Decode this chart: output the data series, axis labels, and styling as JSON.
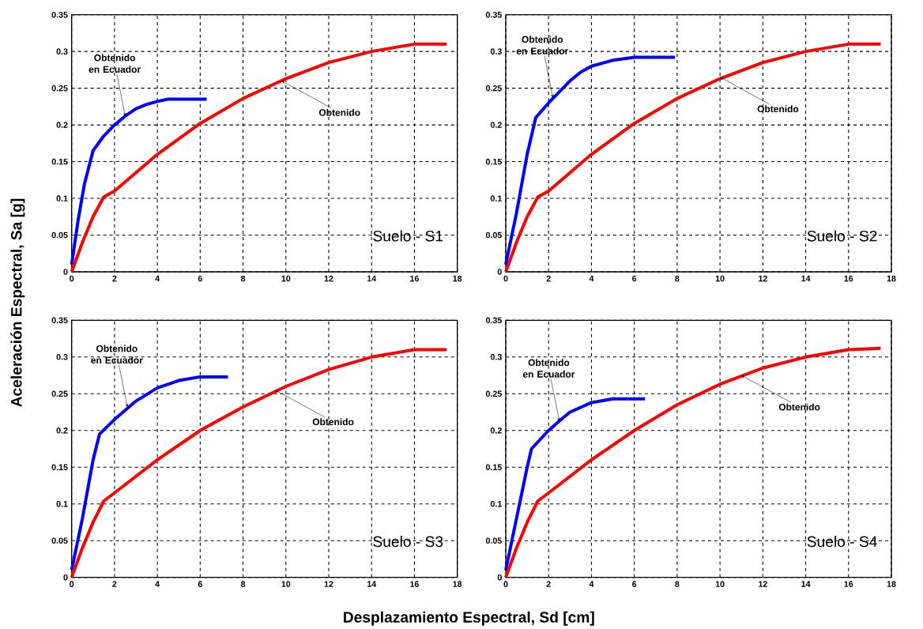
{
  "chart_data": [
    {
      "type": "line",
      "ylabel": "Aceleración Espectral, Sa [g]",
      "xlim": [
        0,
        18
      ],
      "ylim": [
        0,
        0.35
      ],
      "xticks": [
        0,
        2,
        4,
        6,
        8,
        10,
        12,
        14,
        16,
        18
      ],
      "yticks": [
        0,
        0.05,
        0.1,
        0.15,
        0.2,
        0.25,
        0.3,
        0.35
      ],
      "grid": true,
      "line_style": "solid",
      "series": [
        {
          "color": "#0000ff",
          "x": [
            0,
            0.3,
            0.6,
            1.0,
            1.5,
            2,
            2.5,
            3,
            3.5,
            4,
            4.5,
            6.3
          ],
          "values": [
            0.01,
            0.07,
            0.12,
            0.165,
            0.185,
            0.2,
            0.212,
            0.222,
            0.228,
            0.232,
            0.235,
            0.235
          ]
        },
        {
          "color": "#ff0000",
          "x": [
            0,
            0.5,
            1,
            1.5,
            2,
            4,
            6,
            8,
            10,
            12,
            14,
            16,
            17.5
          ],
          "values": [
            0,
            0.04,
            0.075,
            0.102,
            0.11,
            0.16,
            0.202,
            0.236,
            0.263,
            0.285,
            0.3,
            0.31,
            0.31
          ]
        }
      ],
      "annotations": [
        {
          "text": "Obtenido en Ecuador",
          "x": 2.5,
          "y": 0.212
        },
        {
          "text": "Obtenido",
          "x": 9.8,
          "y": 0.26
        },
        "Suelo - S1"
      ]
    },
    {
      "type": "line",
      "xlim": [
        0,
        18
      ],
      "ylim": [
        0,
        0.35
      ],
      "xticks": [
        0,
        2,
        4,
        6,
        8,
        10,
        12,
        14,
        16,
        18
      ],
      "yticks": [
        0,
        0.05,
        0.1,
        0.15,
        0.2,
        0.25,
        0.3,
        0.35
      ],
      "grid": true,
      "line_style": "solid",
      "series": [
        {
          "color": "#0000ff",
          "x": [
            0,
            0.5,
            1,
            1.4,
            2,
            2.5,
            3,
            3.5,
            4,
            5,
            6,
            7.9
          ],
          "values": [
            0.01,
            0.08,
            0.16,
            0.21,
            0.23,
            0.245,
            0.26,
            0.272,
            0.28,
            0.288,
            0.292,
            0.292
          ]
        },
        {
          "color": "#ff0000",
          "x": [
            0,
            0.5,
            1,
            1.5,
            2,
            4,
            6,
            8,
            10,
            12,
            14,
            16,
            17.5
          ],
          "values": [
            0,
            0.04,
            0.075,
            0.102,
            0.11,
            0.16,
            0.202,
            0.236,
            0.263,
            0.285,
            0.3,
            0.31,
            0.31
          ]
        }
      ],
      "annotations": [
        {
          "text": "Obtenido en Ecuador",
          "x": 2.2,
          "y": 0.237
        },
        {
          "text": "Obtenido",
          "x": 10,
          "y": 0.265
        },
        "Suelo - S2"
      ]
    },
    {
      "type": "line",
      "xlabel": "Desplazamiento Espectral, Sd [cm]",
      "xlim": [
        0,
        18
      ],
      "ylim": [
        0,
        0.35
      ],
      "xticks": [
        0,
        2,
        4,
        6,
        8,
        10,
        12,
        14,
        16,
        18
      ],
      "yticks": [
        0,
        0.05,
        0.1,
        0.15,
        0.2,
        0.25,
        0.3,
        0.35
      ],
      "grid": true,
      "line_style": "solid",
      "series": [
        {
          "color": "#0000ff",
          "x": [
            0,
            0.5,
            1,
            1.3,
            2,
            3,
            4,
            5,
            6,
            7.3
          ],
          "values": [
            0.01,
            0.08,
            0.16,
            0.195,
            0.215,
            0.24,
            0.258,
            0.268,
            0.273,
            0.273
          ]
        },
        {
          "color": "#ff0000",
          "x": [
            0,
            0.5,
            1,
            1.5,
            2,
            4,
            6,
            8,
            10,
            12,
            14,
            16,
            17.5
          ],
          "values": [
            0,
            0.04,
            0.075,
            0.104,
            0.115,
            0.16,
            0.2,
            0.232,
            0.26,
            0.283,
            0.3,
            0.31,
            0.31
          ]
        }
      ],
      "annotations": [
        {
          "text": "Obtenido en Ecuador",
          "x": 2.6,
          "y": 0.232
        },
        {
          "text": "Obtenido",
          "x": 9.5,
          "y": 0.255
        },
        "Suelo - S3"
      ]
    },
    {
      "type": "line",
      "xlim": [
        0,
        18
      ],
      "ylim": [
        0,
        0.35
      ],
      "xticks": [
        0,
        2,
        4,
        6,
        8,
        10,
        12,
        14,
        16,
        18
      ],
      "yticks": [
        0,
        0.05,
        0.1,
        0.15,
        0.2,
        0.25,
        0.3,
        0.35
      ],
      "grid": true,
      "line_style": "solid",
      "series": [
        {
          "color": "#0000ff",
          "x": [
            0,
            0.5,
            1,
            1.2,
            2,
            2.5,
            3,
            4,
            5,
            6.5
          ],
          "values": [
            0.01,
            0.08,
            0.15,
            0.175,
            0.2,
            0.213,
            0.225,
            0.238,
            0.243,
            0.243
          ]
        },
        {
          "color": "#ff0000",
          "x": [
            0,
            0.5,
            1,
            1.5,
            2,
            4,
            6,
            8,
            10,
            12,
            14,
            16,
            17.5
          ],
          "values": [
            0,
            0.04,
            0.075,
            0.104,
            0.115,
            0.16,
            0.2,
            0.235,
            0.263,
            0.285,
            0.3,
            0.31,
            0.312
          ]
        }
      ],
      "annotations": [
        {
          "text": "Obtenido en Ecuador",
          "x": 2.5,
          "y": 0.213
        },
        {
          "text": "Obtenido",
          "x": 11,
          "y": 0.275
        },
        "Suelo - S4"
      ]
    }
  ]
}
